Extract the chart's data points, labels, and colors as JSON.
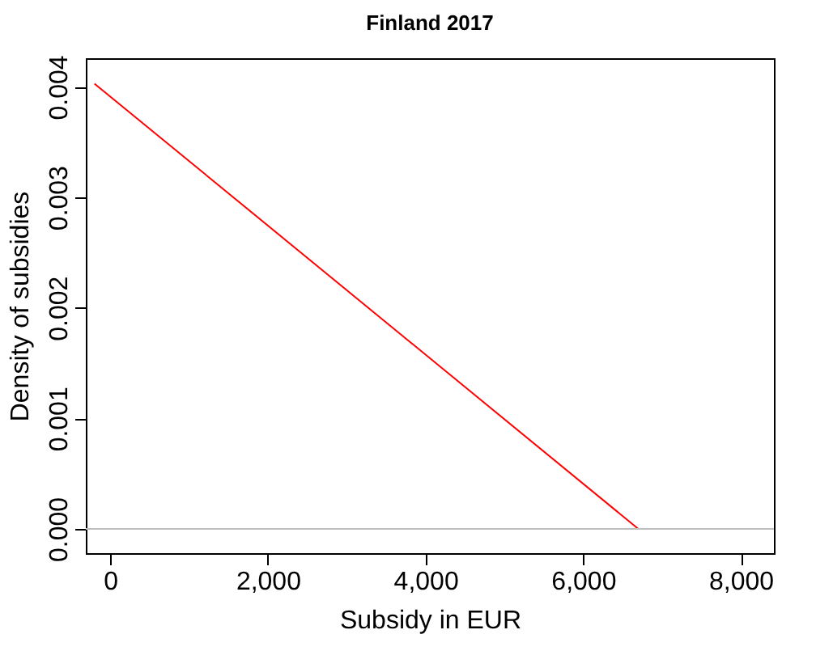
{
  "chart_data": {
    "type": "line",
    "title": "Finland 2017",
    "xlabel": "Subsidy in EUR",
    "ylabel": "Density of subsidies",
    "x": [
      -200,
      6700
    ],
    "series": [
      {
        "color": "#ff0000",
        "values": [
          0.00403,
          0.0
        ]
      }
    ],
    "xlim": [
      -310,
      8420
    ],
    "ylim": [
      -0.00022,
      0.00426
    ],
    "xticks": [
      {
        "value": 0,
        "label": "0"
      },
      {
        "value": 2000,
        "label": "2,000"
      },
      {
        "value": 4000,
        "label": "4,000"
      },
      {
        "value": 6000,
        "label": "6,000"
      },
      {
        "value": 8000,
        "label": "8,000"
      }
    ],
    "yticks": [
      {
        "value": 0,
        "label": "0.000"
      },
      {
        "value": 0.001,
        "label": "0.001"
      },
      {
        "value": 0.002,
        "label": "0.002"
      },
      {
        "value": 0.003,
        "label": "0.003"
      },
      {
        "value": 0.004,
        "label": "0.004"
      }
    ],
    "ref_lines": [
      {
        "axis": "y",
        "value": 0,
        "color": "#bebebe"
      }
    ],
    "grid": false,
    "marker": "none",
    "line_style": "solid"
  }
}
